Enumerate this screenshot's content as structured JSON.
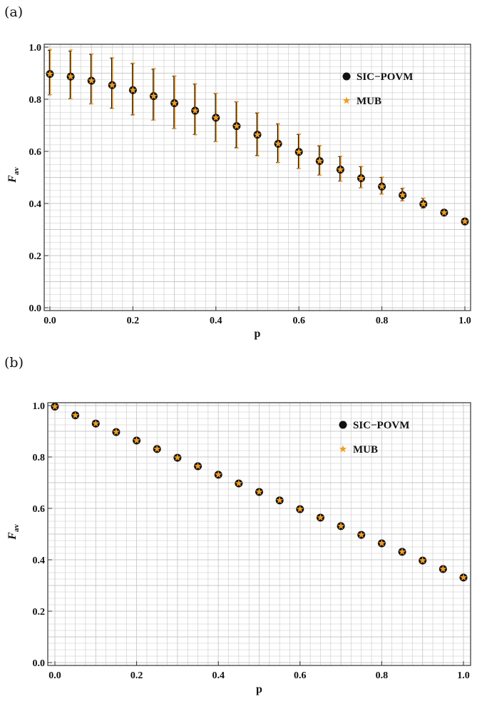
{
  "panel_labels": [
    "(a)",
    "(b)"
  ],
  "colors": {
    "sic": "#111111",
    "mub": "#f39c1e",
    "grid": "#c8c8c8",
    "frame": "#333333"
  },
  "chart_data": [
    {
      "type": "scatter",
      "panel": "(a)",
      "xlabel": "p",
      "ylabel": "F",
      "ylabel_sub": "av",
      "xlim": [
        0,
        1
      ],
      "ylim": [
        0,
        1
      ],
      "xticks": [
        "0.0",
        "0.2",
        "0.4",
        "0.6",
        "0.8",
        "1.0"
      ],
      "yticks": [
        "0.0",
        "0.2",
        "0.4",
        "0.6",
        "0.8",
        "1.0"
      ],
      "grid": true,
      "legend_position": "top-right",
      "error_bars": true,
      "x": [
        0.0,
        0.05,
        0.1,
        0.15,
        0.2,
        0.25,
        0.3,
        0.35,
        0.4,
        0.45,
        0.5,
        0.55,
        0.6,
        0.65,
        0.7,
        0.75,
        0.8,
        0.85,
        0.9,
        0.95,
        1.0
      ],
      "series": [
        {
          "name": "SIC−POVM",
          "marker": "circle",
          "values": [
            0.897,
            0.887,
            0.871,
            0.854,
            0.835,
            0.812,
            0.785,
            0.756,
            0.729,
            0.697,
            0.664,
            0.629,
            0.598,
            0.563,
            0.53,
            0.497,
            0.465,
            0.432,
            0.398,
            0.365,
            0.331
          ],
          "err_low": [
            0.817,
            0.802,
            0.782,
            0.766,
            0.74,
            0.72,
            0.688,
            0.665,
            0.637,
            0.614,
            0.584,
            0.557,
            0.534,
            0.509,
            0.486,
            0.46,
            0.436,
            0.41,
            0.382,
            0.36,
            0.331
          ],
          "err_high": [
            0.988,
            0.985,
            0.972,
            0.958,
            0.937,
            0.915,
            0.888,
            0.858,
            0.822,
            0.79,
            0.747,
            0.705,
            0.665,
            0.621,
            0.58,
            0.541,
            0.5,
            0.457,
            0.42,
            0.371,
            0.331
          ]
        },
        {
          "name": "MUB",
          "marker": "star",
          "values": [
            0.897,
            0.887,
            0.871,
            0.854,
            0.835,
            0.812,
            0.785,
            0.756,
            0.729,
            0.697,
            0.664,
            0.629,
            0.598,
            0.563,
            0.53,
            0.497,
            0.465,
            0.432,
            0.398,
            0.365,
            0.331
          ],
          "err_low": [
            0.818,
            0.801,
            0.782,
            0.764,
            0.742,
            0.72,
            0.689,
            0.663,
            0.637,
            0.612,
            0.582,
            0.558,
            0.534,
            0.508,
            0.485,
            0.46,
            0.436,
            0.41,
            0.383,
            0.36,
            0.331
          ],
          "err_high": [
            0.992,
            0.99,
            0.975,
            0.96,
            0.939,
            0.918,
            0.89,
            0.86,
            0.823,
            0.791,
            0.749,
            0.707,
            0.667,
            0.623,
            0.582,
            0.543,
            0.502,
            0.46,
            0.421,
            0.372,
            0.331
          ]
        }
      ]
    },
    {
      "type": "scatter",
      "panel": "(b)",
      "xlabel": "p",
      "ylabel": "F",
      "ylabel_sub": "av",
      "xlim": [
        0,
        1
      ],
      "ylim": [
        0,
        1
      ],
      "xticks": [
        "0.0",
        "0.2",
        "0.4",
        "0.6",
        "0.8",
        "1.0"
      ],
      "yticks": [
        "0.0",
        "0.2",
        "0.4",
        "0.6",
        "0.8",
        "1.0"
      ],
      "grid": true,
      "legend_position": "top-right",
      "error_bars": false,
      "x": [
        0.0,
        0.05,
        0.1,
        0.15,
        0.2,
        0.25,
        0.3,
        0.35,
        0.4,
        0.45,
        0.5,
        0.55,
        0.6,
        0.65,
        0.7,
        0.75,
        0.8,
        0.85,
        0.9,
        0.95,
        1.0
      ],
      "series": [
        {
          "name": "SIC−POVM",
          "marker": "circle",
          "values": [
            0.996,
            0.962,
            0.93,
            0.897,
            0.864,
            0.831,
            0.797,
            0.764,
            0.731,
            0.697,
            0.664,
            0.631,
            0.597,
            0.564,
            0.531,
            0.497,
            0.464,
            0.431,
            0.397,
            0.364,
            0.331
          ]
        },
        {
          "name": "MUB",
          "marker": "star",
          "values": [
            0.996,
            0.962,
            0.93,
            0.897,
            0.864,
            0.831,
            0.797,
            0.764,
            0.731,
            0.697,
            0.664,
            0.631,
            0.597,
            0.564,
            0.531,
            0.497,
            0.464,
            0.431,
            0.397,
            0.364,
            0.331
          ]
        }
      ]
    }
  ]
}
